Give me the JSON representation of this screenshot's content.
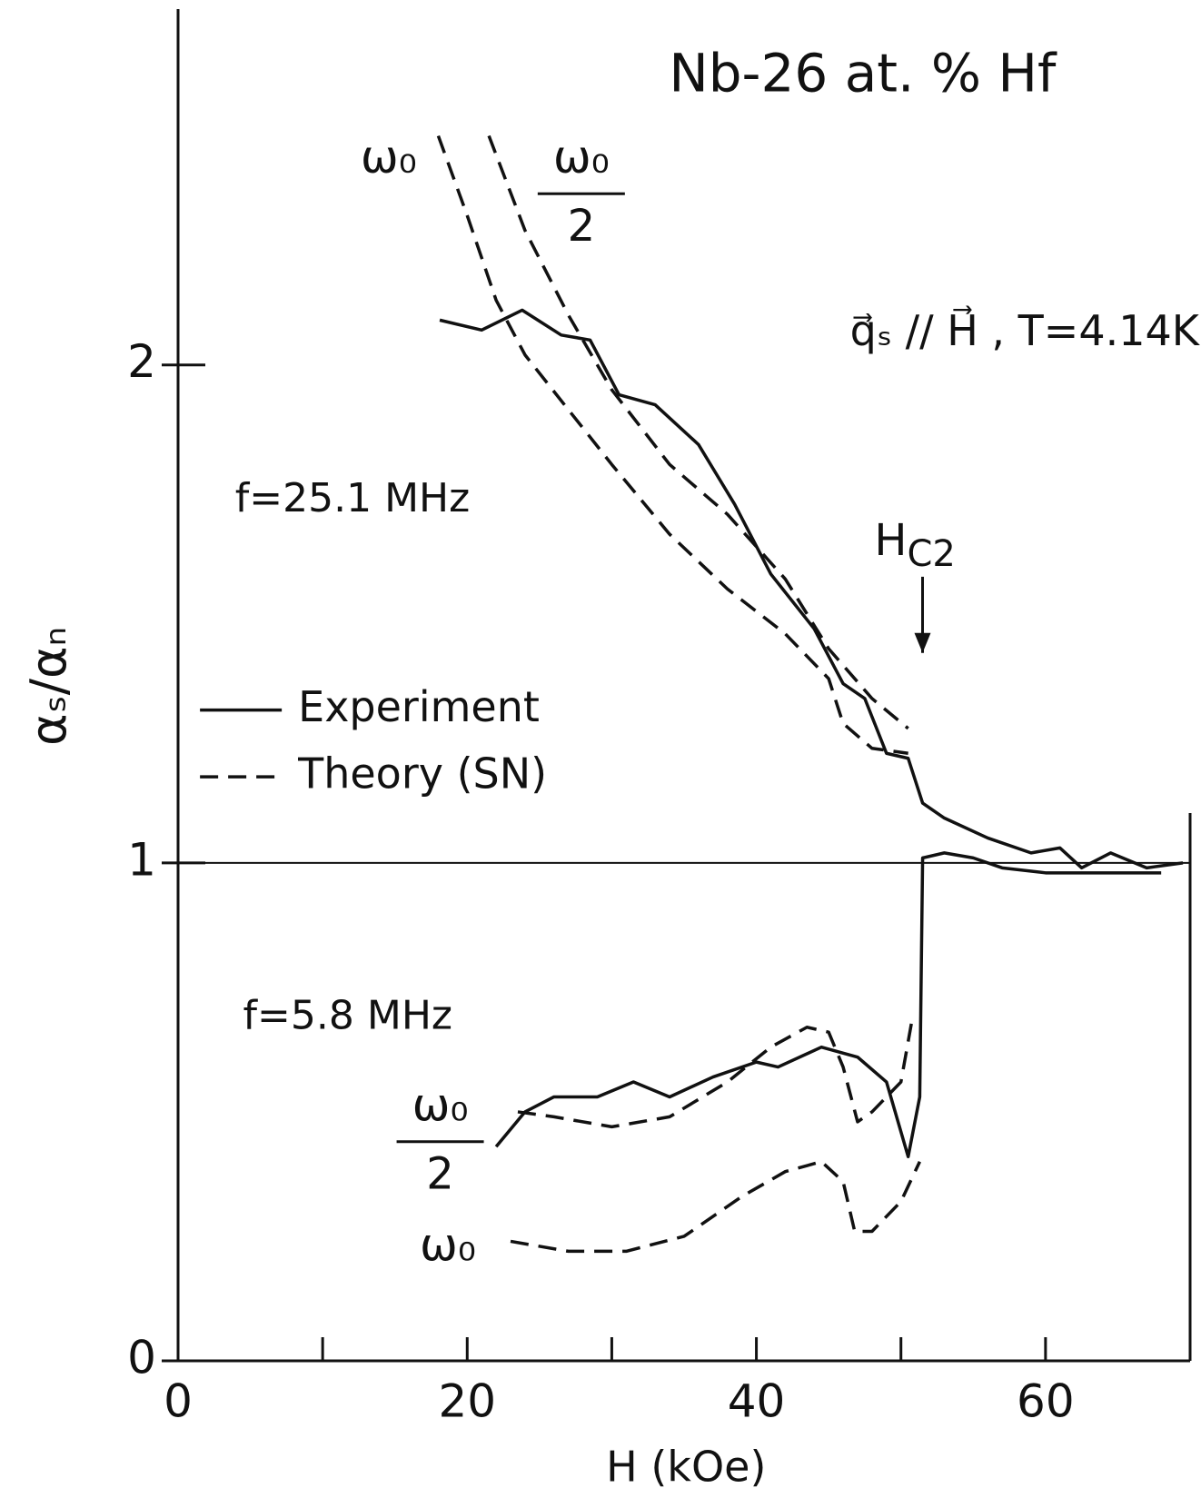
{
  "chart_data": {
    "type": "line",
    "title": "Nb-26 at. % Hf",
    "xlabel": "H (kOe)",
    "ylabel": "αₛ/αₙ",
    "xlim": [
      0,
      70
    ],
    "ylim": [
      0,
      2.7
    ],
    "xticks": [
      0,
      20,
      40,
      60
    ],
    "xminorticks": [
      10,
      30,
      50
    ],
    "yticks": [
      0,
      1,
      2
    ],
    "hline": 1,
    "annotations": {
      "condition": "q⃗ₛ // H⃗ , T=4.14K",
      "f_high": "f=25.1 MHz",
      "f_low": "f=5.8 MHz",
      "hc2": {
        "main": "H",
        "sub": "C2"
      },
      "omega_top": "ω₀",
      "omega_half_top": {
        "numerator": "ω₀",
        "denominator": "2"
      },
      "omega_half_bottom": {
        "numerator": "ω₀",
        "denominator": "2"
      },
      "omega_bottom": "ω₀"
    },
    "legend": [
      {
        "name": "Experiment",
        "style": "solid"
      },
      {
        "name": "Theory (SN)",
        "style": "dashed"
      }
    ],
    "series": [
      {
        "style": "solid",
        "color": "#111",
        "x": [
          18.1,
          21,
          23.8,
          26.5,
          28.5,
          30.5,
          33,
          36,
          38.5,
          41,
          44,
          46,
          47.5,
          49,
          50.5,
          51.5,
          53,
          56,
          59,
          61,
          62.5,
          64.5,
          67,
          69.5
        ],
        "values": [
          2.09,
          2.07,
          2.11,
          2.06,
          2.05,
          1.94,
          1.92,
          1.84,
          1.72,
          1.58,
          1.47,
          1.36,
          1.33,
          1.22,
          1.21,
          1.12,
          1.09,
          1.05,
          1.02,
          1.03,
          0.99,
          1.02,
          0.99,
          1.0
        ]
      },
      {
        "style": "dashed",
        "color": "#111",
        "x": [
          18,
          20,
          22,
          24,
          27,
          30,
          34,
          38,
          42,
          45,
          46,
          48,
          50.5
        ],
        "values": [
          2.46,
          2.3,
          2.13,
          2.02,
          1.91,
          1.8,
          1.66,
          1.55,
          1.46,
          1.37,
          1.28,
          1.23,
          1.22
        ]
      },
      {
        "style": "dashed",
        "color": "#111",
        "x": [
          21.5,
          24,
          27,
          30,
          34,
          38,
          42,
          45,
          48,
          50.5
        ],
        "values": [
          2.46,
          2.27,
          2.1,
          1.95,
          1.8,
          1.7,
          1.57,
          1.43,
          1.33,
          1.27
        ]
      },
      {
        "style": "solid",
        "color": "#111",
        "x": [
          22,
          24,
          26,
          29,
          31.5,
          34,
          37,
          40,
          41.5,
          44.5,
          47,
          49,
          50.5,
          51.3,
          51.5,
          53,
          55,
          57,
          60,
          65,
          68
        ],
        "values": [
          0.43,
          0.5,
          0.53,
          0.53,
          0.56,
          0.53,
          0.57,
          0.6,
          0.59,
          0.63,
          0.61,
          0.56,
          0.41,
          0.53,
          1.01,
          1.02,
          1.01,
          0.99,
          0.98,
          0.98,
          0.98
        ]
      },
      {
        "style": "dashed",
        "color": "#111",
        "x": [
          23.5,
          26,
          30,
          34,
          38,
          41,
          43.5,
          45,
          46,
          47,
          48,
          50,
          50.8
        ],
        "values": [
          0.5,
          0.49,
          0.47,
          0.49,
          0.56,
          0.63,
          0.67,
          0.66,
          0.59,
          0.48,
          0.5,
          0.56,
          0.69
        ]
      },
      {
        "style": "dashed",
        "color": "#111",
        "x": [
          23,
          27,
          31,
          35,
          39,
          42,
          44.5,
          46,
          46.8,
          48,
          50,
          51.3
        ],
        "values": [
          0.24,
          0.22,
          0.22,
          0.25,
          0.33,
          0.38,
          0.4,
          0.36,
          0.26,
          0.26,
          0.32,
          0.4
        ]
      }
    ]
  }
}
